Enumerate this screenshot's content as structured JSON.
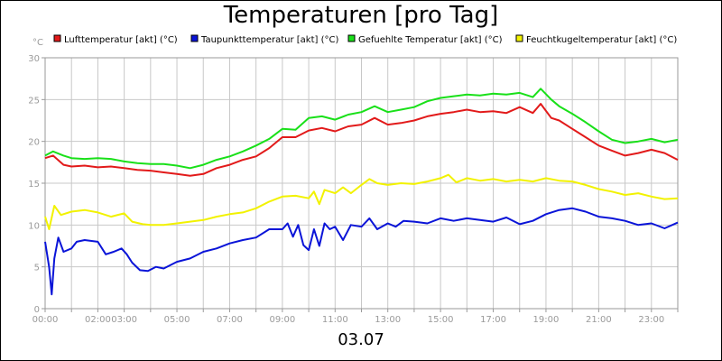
{
  "title": "Temperaturen [pro Tag]",
  "date_label": "03.07",
  "colors": {
    "lufttemperatur": "#e21a1a",
    "taupunkt": "#0a14d8",
    "gefuehlt": "#19e019",
    "feuchtkugel": "#f2f200",
    "grid": "#c8c8c8",
    "axis_text": "#9a9a9a"
  },
  "chart_data": {
    "type": "line",
    "title": "Temperaturen [pro Tag]",
    "xlabel": "03.07",
    "ylabel": "°C",
    "ylim": [
      0,
      30
    ],
    "xlim": [
      0,
      24
    ],
    "yticks": [
      "0",
      "5",
      "10",
      "15",
      "20",
      "25",
      "30"
    ],
    "xtick_labels": [
      {
        "hour": 0,
        "label": "00:00"
      },
      {
        "hour": 2,
        "label": "02:00"
      },
      {
        "hour": 3,
        "label": "03:00"
      },
      {
        "hour": 5,
        "label": "05:00"
      },
      {
        "hour": 7,
        "label": "07:00"
      },
      {
        "hour": 9,
        "label": "09:00"
      },
      {
        "hour": 11,
        "label": "11:00"
      },
      {
        "hour": 13,
        "label": "13:00"
      },
      {
        "hour": 15,
        "label": "15:00"
      },
      {
        "hour": 17,
        "label": "17:00"
      },
      {
        "hour": 19,
        "label": "19:00"
      },
      {
        "hour": 21,
        "label": "21:00"
      },
      {
        "hour": 23,
        "label": "23:00"
      }
    ],
    "grid": true,
    "legend_position": "top",
    "series": [
      {
        "name": "Lufttemperatur [akt] (°C)",
        "color": "#e21a1a",
        "points": [
          [
            0,
            18.0
          ],
          [
            0.3,
            18.3
          ],
          [
            0.7,
            17.2
          ],
          [
            1,
            17.0
          ],
          [
            1.5,
            17.1
          ],
          [
            2,
            16.9
          ],
          [
            2.5,
            17.0
          ],
          [
            3,
            16.8
          ],
          [
            3.5,
            16.6
          ],
          [
            4,
            16.5
          ],
          [
            4.5,
            16.3
          ],
          [
            5,
            16.1
          ],
          [
            5.5,
            15.9
          ],
          [
            6,
            16.1
          ],
          [
            6.5,
            16.8
          ],
          [
            7,
            17.2
          ],
          [
            7.5,
            17.8
          ],
          [
            8,
            18.2
          ],
          [
            8.5,
            19.2
          ],
          [
            9,
            20.5
          ],
          [
            9.5,
            20.5
          ],
          [
            10,
            21.3
          ],
          [
            10.5,
            21.6
          ],
          [
            11,
            21.2
          ],
          [
            11.5,
            21.8
          ],
          [
            12,
            22.0
          ],
          [
            12.5,
            22.8
          ],
          [
            13,
            22.0
          ],
          [
            13.5,
            22.2
          ],
          [
            14,
            22.5
          ],
          [
            14.5,
            23.0
          ],
          [
            15,
            23.3
          ],
          [
            15.5,
            23.5
          ],
          [
            16,
            23.8
          ],
          [
            16.5,
            23.5
          ],
          [
            17,
            23.6
          ],
          [
            17.5,
            23.4
          ],
          [
            18,
            24.1
          ],
          [
            18.5,
            23.4
          ],
          [
            18.8,
            24.5
          ],
          [
            19.2,
            22.8
          ],
          [
            19.5,
            22.5
          ],
          [
            20,
            21.5
          ],
          [
            20.5,
            20.5
          ],
          [
            21,
            19.5
          ],
          [
            21.5,
            18.9
          ],
          [
            22,
            18.3
          ],
          [
            22.5,
            18.6
          ],
          [
            23,
            19.0
          ],
          [
            23.5,
            18.6
          ],
          [
            24,
            17.8
          ]
        ]
      },
      {
        "name": "Taupunkttemperatur [akt] (°C)",
        "color": "#0a14d8",
        "points": [
          [
            0,
            8.0
          ],
          [
            0.15,
            5.0
          ],
          [
            0.25,
            1.7
          ],
          [
            0.35,
            6.0
          ],
          [
            0.5,
            8.5
          ],
          [
            0.7,
            6.8
          ],
          [
            1,
            7.2
          ],
          [
            1.2,
            8.0
          ],
          [
            1.5,
            8.2
          ],
          [
            2,
            8.0
          ],
          [
            2.3,
            6.5
          ],
          [
            2.6,
            6.8
          ],
          [
            2.9,
            7.2
          ],
          [
            3.1,
            6.5
          ],
          [
            3.3,
            5.5
          ],
          [
            3.6,
            4.6
          ],
          [
            3.9,
            4.5
          ],
          [
            4.2,
            5.0
          ],
          [
            4.5,
            4.8
          ],
          [
            5,
            5.6
          ],
          [
            5.5,
            6.0
          ],
          [
            6,
            6.8
          ],
          [
            6.5,
            7.2
          ],
          [
            7,
            7.8
          ],
          [
            7.5,
            8.2
          ],
          [
            8,
            8.5
          ],
          [
            8.5,
            9.5
          ],
          [
            9,
            9.5
          ],
          [
            9.2,
            10.2
          ],
          [
            9.4,
            8.6
          ],
          [
            9.6,
            10.0
          ],
          [
            9.8,
            7.6
          ],
          [
            10,
            7.0
          ],
          [
            10.2,
            9.5
          ],
          [
            10.4,
            7.5
          ],
          [
            10.6,
            10.2
          ],
          [
            10.8,
            9.5
          ],
          [
            11,
            9.8
          ],
          [
            11.3,
            8.2
          ],
          [
            11.6,
            10.0
          ],
          [
            12,
            9.8
          ],
          [
            12.3,
            10.8
          ],
          [
            12.6,
            9.5
          ],
          [
            13,
            10.2
          ],
          [
            13.3,
            9.8
          ],
          [
            13.6,
            10.5
          ],
          [
            14,
            10.4
          ],
          [
            14.5,
            10.2
          ],
          [
            15,
            10.8
          ],
          [
            15.5,
            10.5
          ],
          [
            16,
            10.8
          ],
          [
            16.5,
            10.6
          ],
          [
            17,
            10.4
          ],
          [
            17.5,
            10.9
          ],
          [
            18,
            10.1
          ],
          [
            18.5,
            10.5
          ],
          [
            19,
            11.3
          ],
          [
            19.5,
            11.8
          ],
          [
            20,
            12.0
          ],
          [
            20.5,
            11.6
          ],
          [
            21,
            11.0
          ],
          [
            21.5,
            10.8
          ],
          [
            22,
            10.5
          ],
          [
            22.5,
            10.0
          ],
          [
            23,
            10.2
          ],
          [
            23.5,
            9.6
          ],
          [
            24,
            10.3
          ]
        ]
      },
      {
        "name": "Gefuehlte Temperatur [akt] (°C)",
        "color": "#19e019",
        "points": [
          [
            0,
            18.3
          ],
          [
            0.3,
            18.8
          ],
          [
            0.7,
            18.3
          ],
          [
            1,
            18.0
          ],
          [
            1.5,
            17.9
          ],
          [
            2,
            18.0
          ],
          [
            2.5,
            17.9
          ],
          [
            3,
            17.6
          ],
          [
            3.5,
            17.4
          ],
          [
            4,
            17.3
          ],
          [
            4.5,
            17.3
          ],
          [
            5,
            17.1
          ],
          [
            5.5,
            16.8
          ],
          [
            6,
            17.2
          ],
          [
            6.5,
            17.8
          ],
          [
            7,
            18.2
          ],
          [
            7.5,
            18.8
          ],
          [
            8,
            19.5
          ],
          [
            8.5,
            20.3
          ],
          [
            9,
            21.5
          ],
          [
            9.5,
            21.4
          ],
          [
            10,
            22.8
          ],
          [
            10.5,
            23.0
          ],
          [
            11,
            22.6
          ],
          [
            11.5,
            23.2
          ],
          [
            12,
            23.5
          ],
          [
            12.5,
            24.2
          ],
          [
            13,
            23.5
          ],
          [
            13.5,
            23.8
          ],
          [
            14,
            24.1
          ],
          [
            14.5,
            24.8
          ],
          [
            15,
            25.2
          ],
          [
            15.5,
            25.4
          ],
          [
            16,
            25.6
          ],
          [
            16.5,
            25.5
          ],
          [
            17,
            25.7
          ],
          [
            17.5,
            25.6
          ],
          [
            18,
            25.8
          ],
          [
            18.5,
            25.3
          ],
          [
            18.8,
            26.3
          ],
          [
            19.2,
            25.0
          ],
          [
            19.5,
            24.2
          ],
          [
            20,
            23.3
          ],
          [
            20.5,
            22.3
          ],
          [
            21,
            21.2
          ],
          [
            21.5,
            20.2
          ],
          [
            22,
            19.8
          ],
          [
            22.5,
            20.0
          ],
          [
            23,
            20.3
          ],
          [
            23.5,
            19.9
          ],
          [
            24,
            20.2
          ]
        ]
      },
      {
        "name": "Feuchtkugeltemperatur [akt] (°C)",
        "color": "#f2f200",
        "points": [
          [
            0,
            11.0
          ],
          [
            0.15,
            9.5
          ],
          [
            0.35,
            12.3
          ],
          [
            0.6,
            11.2
          ],
          [
            1,
            11.6
          ],
          [
            1.5,
            11.8
          ],
          [
            2,
            11.5
          ],
          [
            2.5,
            11.0
          ],
          [
            3,
            11.4
          ],
          [
            3.3,
            10.4
          ],
          [
            3.7,
            10.1
          ],
          [
            4,
            10.0
          ],
          [
            4.5,
            10.0
          ],
          [
            5,
            10.2
          ],
          [
            5.5,
            10.4
          ],
          [
            6,
            10.6
          ],
          [
            6.5,
            11.0
          ],
          [
            7,
            11.3
          ],
          [
            7.5,
            11.5
          ],
          [
            8,
            12.0
          ],
          [
            8.5,
            12.8
          ],
          [
            9,
            13.4
          ],
          [
            9.5,
            13.5
          ],
          [
            10,
            13.2
          ],
          [
            10.2,
            14.0
          ],
          [
            10.4,
            12.5
          ],
          [
            10.6,
            14.2
          ],
          [
            11,
            13.8
          ],
          [
            11.3,
            14.5
          ],
          [
            11.6,
            13.8
          ],
          [
            12,
            14.8
          ],
          [
            12.3,
            15.5
          ],
          [
            12.6,
            15.0
          ],
          [
            13,
            14.8
          ],
          [
            13.5,
            15.0
          ],
          [
            14,
            14.9
          ],
          [
            14.5,
            15.2
          ],
          [
            15,
            15.6
          ],
          [
            15.3,
            16.0
          ],
          [
            15.6,
            15.1
          ],
          [
            16,
            15.6
          ],
          [
            16.5,
            15.3
          ],
          [
            17,
            15.5
          ],
          [
            17.5,
            15.2
          ],
          [
            18,
            15.4
          ],
          [
            18.5,
            15.2
          ],
          [
            19,
            15.6
          ],
          [
            19.5,
            15.3
          ],
          [
            20,
            15.2
          ],
          [
            20.5,
            14.8
          ],
          [
            21,
            14.3
          ],
          [
            21.5,
            14.0
          ],
          [
            22,
            13.6
          ],
          [
            22.5,
            13.8
          ],
          [
            23,
            13.4
          ],
          [
            23.5,
            13.1
          ],
          [
            24,
            13.2
          ]
        ]
      }
    ]
  }
}
